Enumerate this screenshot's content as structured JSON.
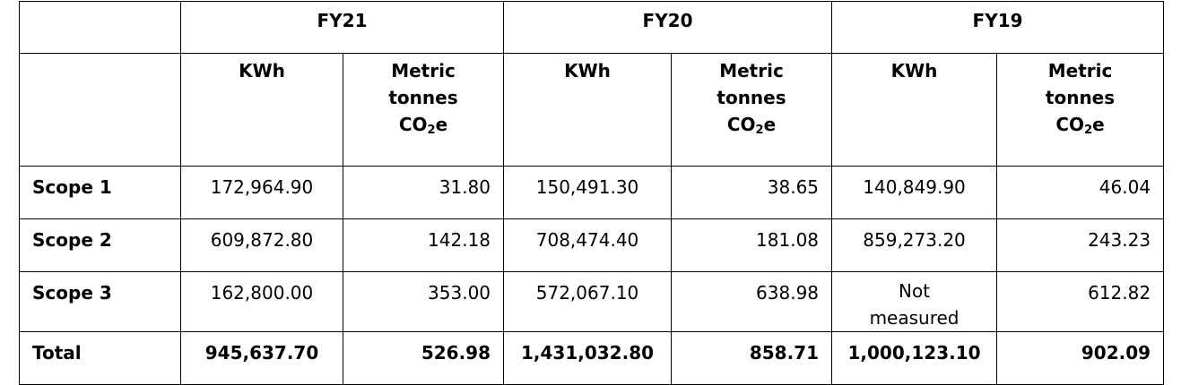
{
  "years": [
    {
      "label": "FY21"
    },
    {
      "label": "FY20"
    },
    {
      "label": "FY19"
    }
  ],
  "units": {
    "kwh": "KWh",
    "co2_line1": "Metric",
    "co2_line2": "tonnes",
    "co2_prefix": "CO",
    "co2_sub": "2",
    "co2_suffix": "e"
  },
  "rows": [
    {
      "label": "Scope 1",
      "fy21": {
        "kwh": "172,964.90",
        "tco2e": "31.80"
      },
      "fy20": {
        "kwh": "150,491.30",
        "tco2e": "38.65"
      },
      "fy19": {
        "kwh": "140,849.90",
        "tco2e": "46.04"
      }
    },
    {
      "label": "Scope 2",
      "fy21": {
        "kwh": "609,872.80",
        "tco2e": "142.18"
      },
      "fy20": {
        "kwh": "708,474.40",
        "tco2e": "181.08"
      },
      "fy19": {
        "kwh": "859,273.20",
        "tco2e": "243.23"
      }
    },
    {
      "label": "Scope 3",
      "fy21": {
        "kwh": "162,800.00",
        "tco2e": "353.00"
      },
      "fy20": {
        "kwh": "572,067.10",
        "tco2e": "638.98"
      },
      "fy19": {
        "kwh_line1": "Not",
        "kwh_line2": "measured",
        "tco2e": "612.82"
      }
    },
    {
      "label": "Total",
      "fy21": {
        "kwh": "945,637.70",
        "tco2e": "526.98"
      },
      "fy20": {
        "kwh": "1,431,032.80",
        "tco2e": "858.71"
      },
      "fy19": {
        "kwh": "1,000,123.10",
        "tco2e": "902.09"
      }
    }
  ]
}
